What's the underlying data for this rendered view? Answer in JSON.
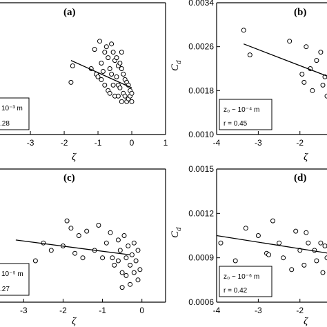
{
  "chart_data": [
    {
      "type": "scatter",
      "panel_label": "(a)",
      "xlabel": "ζ",
      "ylabel": "",
      "xlim": [
        -4,
        1
      ],
      "ylim": [
        0.001,
        0.0034
      ],
      "x_ticks": [
        "-3",
        "-2",
        "-1",
        "0",
        "1"
      ],
      "y_ticks": [],
      "legend_line1": "10⁻³ m",
      "legend_line2": ".28",
      "fit": {
        "x": [
          -1.8,
          0.0
        ],
        "y": [
          0.00235,
          0.00185
        ]
      },
      "points": [
        [
          -1.8,
          0.00195
        ],
        [
          -1.75,
          0.00225
        ],
        [
          -1.2,
          0.0022
        ],
        [
          -1.1,
          0.00255
        ],
        [
          -1.05,
          0.0021
        ],
        [
          -1.0,
          0.00205
        ],
        [
          -0.95,
          0.0027
        ],
        [
          -0.9,
          0.0023
        ],
        [
          -0.85,
          0.00215
        ],
        [
          -0.8,
          0.0025
        ],
        [
          -0.75,
          0.0026
        ],
        [
          -0.7,
          0.0024
        ],
        [
          -0.7,
          0.0018
        ],
        [
          -0.65,
          0.0022
        ],
        [
          -0.6,
          0.0021
        ],
        [
          -0.6,
          0.00265
        ],
        [
          -0.55,
          0.0025
        ],
        [
          -0.55,
          0.0019
        ],
        [
          -0.5,
          0.00235
        ],
        [
          -0.5,
          0.0017
        ],
        [
          -0.45,
          0.0024
        ],
        [
          -0.45,
          0.00205
        ],
        [
          -0.4,
          0.00225
        ],
        [
          -0.4,
          0.0019
        ],
        [
          -0.35,
          0.0023
        ],
        [
          -0.35,
          0.00185
        ],
        [
          -0.3,
          0.0022
        ],
        [
          -0.3,
          0.0016
        ],
        [
          -0.25,
          0.0021
        ],
        [
          -0.25,
          0.00175
        ],
        [
          -0.2,
          0.002
        ],
        [
          -0.2,
          0.0017
        ],
        [
          -0.15,
          0.00195
        ],
        [
          -0.15,
          0.0016
        ],
        [
          -0.1,
          0.0019
        ],
        [
          -0.1,
          0.00165
        ],
        [
          -0.05,
          0.0018
        ],
        [
          -0.05,
          0.0017
        ],
        [
          0.0,
          0.00175
        ],
        [
          0.0,
          0.0016
        ],
        [
          -0.8,
          0.0019
        ],
        [
          -0.9,
          0.002
        ],
        [
          -0.65,
          0.00175
        ],
        [
          -0.4,
          0.0017
        ],
        [
          -0.3,
          0.0025
        ]
      ]
    },
    {
      "type": "scatter",
      "panel_label": "(b)",
      "xlabel": "ζ",
      "ylabel": "C_d",
      "ylabel_main": "C",
      "ylabel_sub": "d",
      "xlim": [
        -4,
        -1
      ],
      "ylim": [
        0.001,
        0.0034
      ],
      "x_ticks": [
        "-4",
        "-3",
        "-2"
      ],
      "y_ticks": [
        "0.0010",
        "0.0018",
        "0.0026",
        "0.0034"
      ],
      "legend_line1": "z₀ ~ 10⁻⁴ m",
      "legend_line2": "r = 0.45",
      "fit": {
        "x": [
          -3.35,
          -1.3
        ],
        "y": [
          0.00265,
          0.00205
        ]
      },
      "points": [
        [
          -3.35,
          0.0029
        ],
        [
          -3.2,
          0.00245
        ],
        [
          -2.25,
          0.0027
        ],
        [
          -1.95,
          0.0021
        ],
        [
          -1.9,
          0.00195
        ],
        [
          -1.85,
          0.0026
        ],
        [
          -1.75,
          0.0022
        ],
        [
          -1.7,
          0.0018
        ],
        [
          -1.6,
          0.00235
        ],
        [
          -1.5,
          0.0025
        ],
        [
          -1.45,
          0.0019
        ],
        [
          -1.4,
          0.00205
        ],
        [
          -1.35,
          0.0017
        ],
        [
          -1.3,
          0.0018
        ],
        [
          -1.3,
          0.002
        ]
      ]
    },
    {
      "type": "scatter",
      "panel_label": "(c)",
      "xlabel": "ζ",
      "ylabel": "",
      "xlim": [
        -3.2,
        0.6
      ],
      "ylim": [
        0.0006,
        0.0015
      ],
      "x_ticks": [
        "-3",
        "-2",
        "-1",
        "0"
      ],
      "y_ticks": [],
      "legend_line1": "10⁻⁵ m",
      "legend_line2": ".27",
      "fit": {
        "x": [
          -3.2,
          -0.3
        ],
        "y": [
          0.00102,
          0.00092
        ]
      },
      "points": [
        [
          -2.5,
          0.001
        ],
        [
          -2.3,
          0.00095
        ],
        [
          -2.0,
          0.00098
        ],
        [
          -1.9,
          0.00115
        ],
        [
          -1.8,
          0.0011
        ],
        [
          -1.7,
          0.00093
        ],
        [
          -1.6,
          0.00105
        ],
        [
          -1.5,
          0.0009
        ],
        [
          -1.4,
          0.00108
        ],
        [
          -1.2,
          0.00095
        ],
        [
          -1.1,
          0.00112
        ],
        [
          -1.0,
          0.0009
        ],
        [
          -0.9,
          0.001
        ],
        [
          -0.8,
          0.00107
        ],
        [
          -0.75,
          0.0009
        ],
        [
          -0.7,
          0.00085
        ],
        [
          -0.6,
          0.00102
        ],
        [
          -0.55,
          0.00095
        ],
        [
          -0.5,
          0.0008
        ],
        [
          -0.45,
          0.00105
        ],
        [
          -0.4,
          0.0009
        ],
        [
          -0.35,
          0.00098
        ],
        [
          -0.3,
          0.00085
        ],
        [
          -0.25,
          0.00092
        ],
        [
          -0.2,
          0.0008
        ],
        [
          -0.2,
          0.001
        ],
        [
          -0.15,
          0.00088
        ],
        [
          -0.1,
          0.00075
        ],
        [
          -0.1,
          0.00095
        ],
        [
          -0.05,
          0.00082
        ],
        [
          -0.3,
          0.00072
        ],
        [
          -0.5,
          0.0007
        ],
        [
          -0.4,
          0.00078
        ],
        [
          -0.6,
          0.00088
        ],
        [
          -2.7,
          0.00088
        ]
      ]
    },
    {
      "type": "scatter",
      "panel_label": "(d)",
      "xlabel": "ζ",
      "ylabel": "C_d",
      "ylabel_main": "C",
      "ylabel_sub": "d",
      "xlim": [
        -4,
        -1
      ],
      "ylim": [
        0.0006,
        0.0015
      ],
      "x_ticks": [
        "-4",
        "-3",
        "-2"
      ],
      "y_ticks": [
        "0.0006",
        "0.0009",
        "0.0012",
        "0.0015"
      ],
      "legend_line1": "z₀ ~ 10⁻⁶ m",
      "legend_line2": "r = 0.42",
      "fit": {
        "x": [
          -4.0,
          -1.3
        ],
        "y": [
          0.00105,
          0.00093
        ]
      },
      "points": [
        [
          -3.9,
          0.001
        ],
        [
          -3.55,
          0.00088
        ],
        [
          -3.3,
          0.0011
        ],
        [
          -3.0,
          0.00105
        ],
        [
          -2.8,
          0.00093
        ],
        [
          -2.75,
          0.00092
        ],
        [
          -2.65,
          0.00115
        ],
        [
          -2.5,
          0.001
        ],
        [
          -2.4,
          0.0009
        ],
        [
          -2.2,
          0.00082
        ],
        [
          -2.1,
          0.00108
        ],
        [
          -2.0,
          0.00095
        ],
        [
          -1.9,
          0.00085
        ],
        [
          -1.85,
          0.00107
        ],
        [
          -1.8,
          0.001
        ],
        [
          -1.65,
          0.00095
        ],
        [
          -1.6,
          0.00088
        ],
        [
          -1.5,
          0.001
        ],
        [
          -1.45,
          0.0008
        ],
        [
          -1.4,
          0.00098
        ],
        [
          -1.35,
          0.0009
        ],
        [
          -1.3,
          0.0011
        ],
        [
          -1.3,
          0.00085
        ]
      ]
    }
  ]
}
